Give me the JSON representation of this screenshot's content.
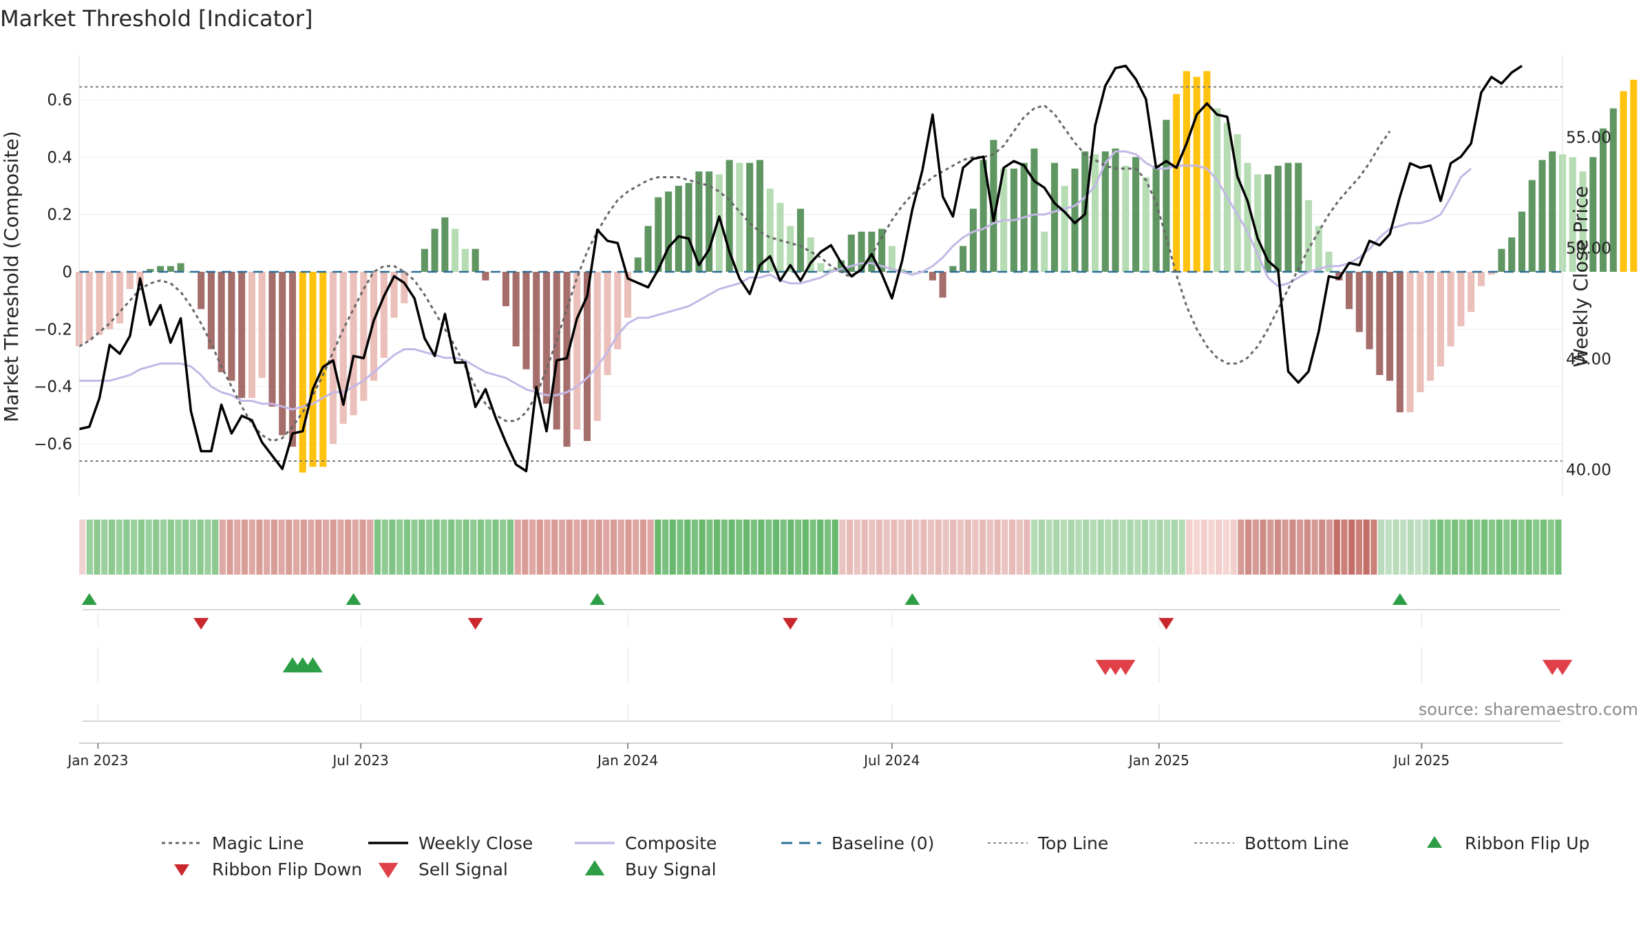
{
  "chart_data": {
    "type": "bar",
    "title": "Market Threshold [Indicator]",
    "ylabel_left": "Market Threshold (Composite)",
    "ylabel_right": "Weekly Close Price",
    "source": "source: sharemaestro.com",
    "x_start": "2022-12-19",
    "x_end": "2025-10-06",
    "interval_days": 7,
    "x_ticks": [
      {
        "date": "2023-01-01",
        "label": "Jan 2023"
      },
      {
        "date": "2023-07-01",
        "label": "Jul 2023"
      },
      {
        "date": "2024-01-01",
        "label": "Jan 2024"
      },
      {
        "date": "2024-07-01",
        "label": "Jul 2024"
      },
      {
        "date": "2025-01-01",
        "label": "Jan 2025"
      },
      {
        "date": "2025-07-01",
        "label": "Jul 2025"
      }
    ],
    "ylim_left": [
      -0.78,
      0.78
    ],
    "yticks_left": [
      {
        "v": 0.6,
        "label": "0.6"
      },
      {
        "v": 0.4,
        "label": "0.4"
      },
      {
        "v": 0.2,
        "label": "0.2"
      },
      {
        "v": 0,
        "label": "0"
      },
      {
        "v": -0.2,
        "label": "−0.2"
      },
      {
        "v": -0.4,
        "label": "−0.4"
      },
      {
        "v": -0.6,
        "label": "−0.6"
      }
    ],
    "ylim_right": [
      38.8,
      59.0
    ],
    "yticks_right": [
      {
        "v": 55,
        "label": "55.00"
      },
      {
        "v": 50,
        "label": "50.00"
      },
      {
        "v": 45,
        "label": "45.00"
      },
      {
        "v": 40,
        "label": "40.00"
      }
    ],
    "top_line": 0.645,
    "bottom_line": -0.66,
    "composite_bars": [
      -0.26,
      -0.24,
      -0.22,
      -0.2,
      -0.18,
      -0.06,
      -0.05,
      0.01,
      0.02,
      0.02,
      0.03,
      0,
      -0.13,
      -0.27,
      -0.35,
      -0.38,
      -0.44,
      -0.44,
      -0.37,
      -0.47,
      -0.57,
      -0.61,
      -0.7,
      -0.68,
      -0.68,
      -0.6,
      -0.53,
      -0.5,
      -0.45,
      -0.38,
      -0.3,
      -0.16,
      -0.11,
      0,
      0.08,
      0.15,
      0.19,
      0.15,
      0.08,
      0.08,
      -0.03,
      0,
      -0.12,
      -0.26,
      -0.34,
      -0.41,
      -0.46,
      -0.55,
      -0.61,
      -0.55,
      -0.59,
      -0.52,
      -0.36,
      -0.27,
      -0.16,
      0.05,
      0.16,
      0.26,
      0.28,
      0.3,
      0.31,
      0.35,
      0.35,
      0.34,
      0.39,
      0.38,
      0.38,
      0.39,
      0.29,
      0.24,
      0.16,
      0.22,
      0.12,
      0.03,
      0.01,
      0.04,
      0.13,
      0.14,
      0.14,
      0.15,
      0.09,
      0.01,
      0,
      0,
      -0.03,
      -0.09,
      0.02,
      0.09,
      0.22,
      0.39,
      0.46,
      0.36,
      0.36,
      0.38,
      0.43,
      0.14,
      0.38,
      0.3,
      0.36,
      0.42,
      0.41,
      0.42,
      0.43,
      0.37,
      0.4,
      0.33,
      0.37,
      0.53,
      0.62,
      0.7,
      0.68,
      0.7,
      0.57,
      0.52,
      0.48,
      0.38,
      0.34,
      0.34,
      0.37,
      0.38,
      0.38,
      0.25,
      0.16,
      0.07,
      -0.03,
      -0.13,
      -0.21,
      -0.27,
      -0.36,
      -0.38,
      -0.49,
      -0.49,
      -0.42,
      -0.38,
      -0.33,
      -0.26,
      -0.19,
      -0.14,
      -0.05,
      -0.01,
      0.08,
      0.12,
      0.21,
      0.32,
      0.39,
      0.42,
      0.41,
      0.4,
      0.35,
      0.4,
      0.5,
      0.57,
      0.63,
      0.67
    ],
    "bar_styles": [
      {
        "range": [
          0,
          10
        ],
        "color": "#ebbfba",
        "note": "weak negative"
      },
      {
        "range": [
          7,
          10
        ],
        "color": "#b5dcb3",
        "note": "weak positive"
      },
      {
        "range": [
          10,
          11
        ],
        "color": "#5f9662"
      }
    ],
    "extreme_highlight_color": "#ffc20e",
    "weekly_close": [
      41.8,
      41.9,
      43.2,
      45.6,
      45.2,
      46.0,
      48.6,
      46.5,
      47.4,
      45.7,
      46.8,
      42.6,
      40.8,
      40.8,
      42.9,
      41.6,
      42.4,
      42.2,
      41.2,
      40.6,
      40.0,
      41.6,
      41.7,
      43.6,
      44.6,
      44.9,
      42.9,
      45.1,
      45.0,
      46.7,
      47.8,
      48.7,
      48.4,
      47.7,
      45.9,
      45.1,
      47.0,
      44.8,
      44.8,
      42.8,
      43.6,
      42.3,
      41.2,
      40.2,
      39.9,
      43.7,
      41.7,
      44.9,
      45.0,
      46.8,
      47.8,
      50.8,
      50.3,
      50.2,
      48.6,
      48.4,
      48.2,
      49.0,
      50.0,
      50.5,
      50.4,
      49.2,
      49.9,
      51.4,
      49.8,
      48.6,
      47.9,
      49.2,
      49.6,
      48.5,
      49.2,
      48.5,
      49.3,
      49.8,
      50.1,
      49.3,
      48.7,
      49.0,
      49.7,
      48.8,
      47.7,
      49.4,
      51.7,
      53.5,
      56.0,
      52.3,
      51.4,
      53.6,
      54.0,
      54.1,
      51.2,
      53.6,
      53.9,
      53.7,
      53.0,
      52.7,
      52.0,
      51.6,
      51.1,
      51.5,
      55.5,
      57.3,
      58.1,
      58.2,
      57.6,
      56.7,
      53.6,
      53.9,
      53.6,
      54.7,
      56.0,
      56.5,
      56.0,
      55.9,
      53.2,
      52.1,
      50.4,
      49.4,
      49.0,
      44.4,
      43.9,
      44.4,
      46.2,
      48.7,
      48.6,
      49.3,
      49.2,
      50.3,
      50.1,
      50.6,
      52.3,
      53.8,
      53.6,
      53.7,
      52.1,
      53.8,
      54.1,
      54.7,
      57.0,
      57.7,
      57.4,
      57.9,
      58.2
    ],
    "magic_line": [
      -0.26,
      -0.24,
      -0.21,
      -0.18,
      -0.14,
      -0.1,
      -0.06,
      -0.04,
      -0.03,
      -0.04,
      -0.07,
      -0.12,
      -0.18,
      -0.25,
      -0.33,
      -0.4,
      -0.47,
      -0.53,
      -0.57,
      -0.59,
      -0.58,
      -0.54,
      -0.49,
      -0.43,
      -0.36,
      -0.28,
      -0.2,
      -0.13,
      -0.06,
      0.0,
      0.02,
      0.02,
      0.0,
      -0.03,
      -0.08,
      -0.14,
      -0.2,
      -0.26,
      -0.33,
      -0.4,
      -0.46,
      -0.5,
      -0.52,
      -0.52,
      -0.49,
      -0.43,
      -0.34,
      -0.24,
      -0.13,
      -0.02,
      0.07,
      0.14,
      0.2,
      0.25,
      0.28,
      0.3,
      0.32,
      0.33,
      0.33,
      0.33,
      0.32,
      0.31,
      0.3,
      0.28,
      0.25,
      0.21,
      0.17,
      0.14,
      0.12,
      0.11,
      0.1,
      0.09,
      0.07,
      0.05,
      0.02,
      0.0,
      -0.02,
      0.01,
      0.06,
      0.12,
      0.18,
      0.23,
      0.27,
      0.3,
      0.33,
      0.35,
      0.37,
      0.39,
      0.4,
      0.4,
      0.41,
      0.44,
      0.49,
      0.54,
      0.57,
      0.58,
      0.55,
      0.5,
      0.45,
      0.41,
      0.39,
      0.37,
      0.36,
      0.36,
      0.36,
      0.32,
      0.24,
      0.12,
      -0.01,
      -0.12,
      -0.2,
      -0.26,
      -0.3,
      -0.32,
      -0.32,
      -0.3,
      -0.26,
      -0.2,
      -0.13,
      -0.06,
      0.01,
      0.08,
      0.14,
      0.2,
      0.25,
      0.29,
      0.33,
      0.38,
      0.44,
      0.49
    ],
    "composite_line": [
      -0.38,
      -0.38,
      -0.38,
      -0.38,
      -0.37,
      -0.36,
      -0.34,
      -0.33,
      -0.32,
      -0.32,
      -0.32,
      -0.33,
      -0.36,
      -0.4,
      -0.42,
      -0.43,
      -0.45,
      -0.45,
      -0.46,
      -0.46,
      -0.47,
      -0.48,
      -0.47,
      -0.46,
      -0.44,
      -0.42,
      -0.42,
      -0.4,
      -0.38,
      -0.35,
      -0.32,
      -0.29,
      -0.27,
      -0.27,
      -0.28,
      -0.29,
      -0.3,
      -0.3,
      -0.31,
      -0.33,
      -0.35,
      -0.36,
      -0.37,
      -0.39,
      -0.41,
      -0.42,
      -0.43,
      -0.43,
      -0.42,
      -0.4,
      -0.37,
      -0.33,
      -0.28,
      -0.22,
      -0.18,
      -0.16,
      -0.16,
      -0.15,
      -0.14,
      -0.13,
      -0.12,
      -0.1,
      -0.08,
      -0.06,
      -0.05,
      -0.04,
      -0.02,
      -0.02,
      -0.01,
      -0.03,
      -0.04,
      -0.04,
      -0.03,
      -0.02,
      0.0,
      0.01,
      0.02,
      0.03,
      0.03,
      0.02,
      0.01,
      0.0,
      -0.01,
      0.0,
      0.02,
      0.05,
      0.09,
      0.12,
      0.14,
      0.15,
      0.17,
      0.18,
      0.18,
      0.19,
      0.2,
      0.2,
      0.21,
      0.22,
      0.23,
      0.26,
      0.3,
      0.38,
      0.42,
      0.42,
      0.41,
      0.38,
      0.36,
      0.36,
      0.37,
      0.37,
      0.37,
      0.36,
      0.32,
      0.26,
      0.2,
      0.14,
      0.06,
      -0.02,
      -0.05,
      -0.04,
      -0.02,
      0.0,
      0.01,
      0.02,
      0.02,
      0.03,
      0.05,
      0.08,
      0.12,
      0.15,
      0.16,
      0.17,
      0.17,
      0.18,
      0.2,
      0.26,
      0.33,
      0.36
    ],
    "ribbon_colors": [
      {
        "range": [
          0,
          1
        ],
        "color": "#f0d3d1"
      },
      {
        "range": [
          1,
          19
        ],
        "color": "#8bc98f"
      },
      {
        "range": [
          19,
          40
        ],
        "color": "#d99d98"
      },
      {
        "range": [
          40,
          59
        ],
        "color": "#7fc484"
      },
      {
        "range": [
          59,
          78
        ],
        "color": "#d99b96"
      },
      {
        "range": [
          78,
          103
        ],
        "color": "#68b86e"
      },
      {
        "range": [
          103,
          129
        ],
        "color": "#e6bbb7"
      },
      {
        "range": [
          129,
          150
        ],
        "color": "#a8d6aa"
      },
      {
        "range": [
          150,
          157
        ],
        "color": "#f2cfcc"
      },
      {
        "range": [
          157,
          170
        ],
        "color": "#cf8c86"
      },
      {
        "range": [
          170,
          176
        ],
        "color": "#c46e68"
      },
      {
        "range": [
          176,
          183
        ],
        "color": "#b8dbb9"
      },
      {
        "range": [
          183,
          201
        ],
        "color": "#76c07b"
      }
    ],
    "ribbon_flip_up_dates": [
      "2022-12-26",
      "2023-06-26",
      "2023-12-11",
      "2024-07-15",
      "2025-06-16"
    ],
    "ribbon_flip_down_dates": [
      "2023-03-13",
      "2023-09-18",
      "2024-04-22",
      "2025-01-06"
    ],
    "buy_signal_dates": [
      "2023-05-15",
      "2023-05-22",
      "2023-05-29"
    ],
    "sell_signal_dates": [
      "2024-11-25",
      "2024-12-02",
      "2024-12-09",
      "2025-09-29",
      "2025-10-06"
    ],
    "legend": [
      {
        "label": "Magic Line",
        "kind": "dotted",
        "color": "#666666"
      },
      {
        "label": "Weekly Close",
        "kind": "solid",
        "color": "#000000"
      },
      {
        "label": "Composite",
        "kind": "solid",
        "color": "#c3b8e6"
      },
      {
        "label": "Baseline (0)",
        "kind": "dashed",
        "color": "#2c6e96"
      },
      {
        "label": "Top Line",
        "kind": "fine-dotted",
        "color": "#888888"
      },
      {
        "label": "Bottom Line",
        "kind": "fine-dotted",
        "color": "#888888"
      },
      {
        "label": "Ribbon Flip Up",
        "kind": "tri-up",
        "color": "#2e9e46"
      },
      {
        "label": "Ribbon Flip Down",
        "kind": "tri-down",
        "color": "#c8282d"
      },
      {
        "label": "Sell Signal",
        "kind": "tri-down-big",
        "color": "#e04048"
      },
      {
        "label": "Buy Signal",
        "kind": "tri-up-big",
        "color": "#2e9e46"
      }
    ],
    "colors": {
      "strong_pos": "#5f9662",
      "weak_pos": "#b5dcb3",
      "strong_neg": "#a56e6b",
      "weak_neg": "#ebbfba",
      "extreme": "#ffc20e"
    }
  }
}
